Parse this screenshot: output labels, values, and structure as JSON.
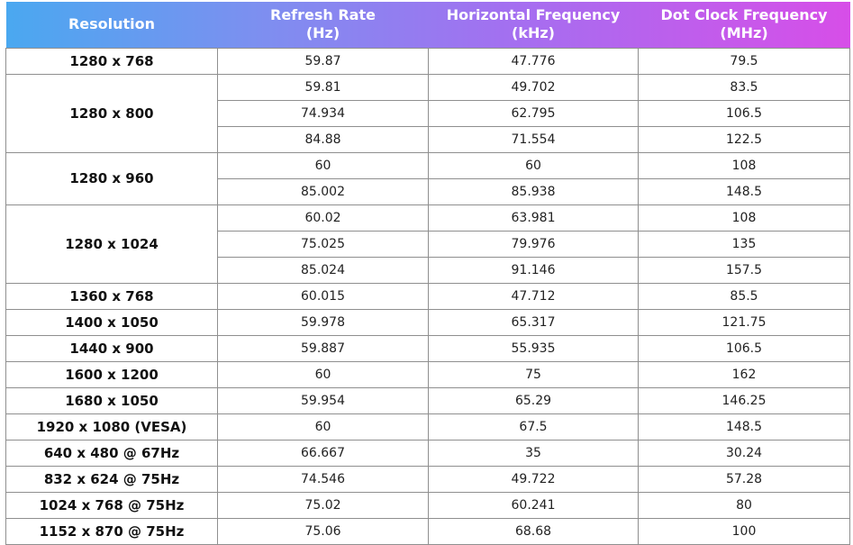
{
  "header": {
    "resolution": "Resolution",
    "refresh_rate": "Refresh Rate",
    "refresh_unit": "(Hz)",
    "horizontal_freq": "Horizontal Frequency",
    "horizontal_unit": "(kHz)",
    "dot_clock": "Dot Clock Frequency",
    "dot_clock_unit": "(MHz)"
  },
  "colors": {
    "header_gradient_start": "#4aa8f0",
    "header_gradient_end": "#d74ee8",
    "border": "#8f8f8f"
  },
  "groups": [
    {
      "resolution": "1280 x 768",
      "rows": [
        [
          "59.87",
          "47.776",
          "79.5"
        ]
      ]
    },
    {
      "resolution": "1280 x 800",
      "rows": [
        [
          "59.81",
          "49.702",
          "83.5"
        ],
        [
          "74.934",
          "62.795",
          "106.5"
        ],
        [
          "84.88",
          "71.554",
          "122.5"
        ]
      ]
    },
    {
      "resolution": "1280 x 960",
      "rows": [
        [
          "60",
          "60",
          "108"
        ],
        [
          "85.002",
          "85.938",
          "148.5"
        ]
      ]
    },
    {
      "resolution": "1280 x 1024",
      "rows": [
        [
          "60.02",
          "63.981",
          "108"
        ],
        [
          "75.025",
          "79.976",
          "135"
        ],
        [
          "85.024",
          "91.146",
          "157.5"
        ]
      ]
    },
    {
      "resolution": "1360 x 768",
      "rows": [
        [
          "60.015",
          "47.712",
          "85.5"
        ]
      ]
    },
    {
      "resolution": "1400 x 1050",
      "rows": [
        [
          "59.978",
          "65.317",
          "121.75"
        ]
      ]
    },
    {
      "resolution": "1440 x 900",
      "rows": [
        [
          "59.887",
          "55.935",
          "106.5"
        ]
      ]
    },
    {
      "resolution": "1600 x 1200",
      "rows": [
        [
          "60",
          "75",
          "162"
        ]
      ]
    },
    {
      "resolution": "1680 x 1050",
      "rows": [
        [
          "59.954",
          "65.29",
          "146.25"
        ]
      ]
    },
    {
      "resolution": "1920 x 1080 (VESA)",
      "rows": [
        [
          "60",
          "67.5",
          "148.5"
        ]
      ]
    },
    {
      "resolution": "640 x 480 @ 67Hz",
      "rows": [
        [
          "66.667",
          "35",
          "30.24"
        ]
      ]
    },
    {
      "resolution": "832 x 624 @ 75Hz",
      "rows": [
        [
          "74.546",
          "49.722",
          "57.28"
        ]
      ]
    },
    {
      "resolution": "1024 x 768 @ 75Hz",
      "rows": [
        [
          "75.02",
          "60.241",
          "80"
        ]
      ]
    },
    {
      "resolution": "1152 x 870 @ 75Hz",
      "rows": [
        [
          "75.06",
          "68.68",
          "100"
        ]
      ]
    }
  ]
}
